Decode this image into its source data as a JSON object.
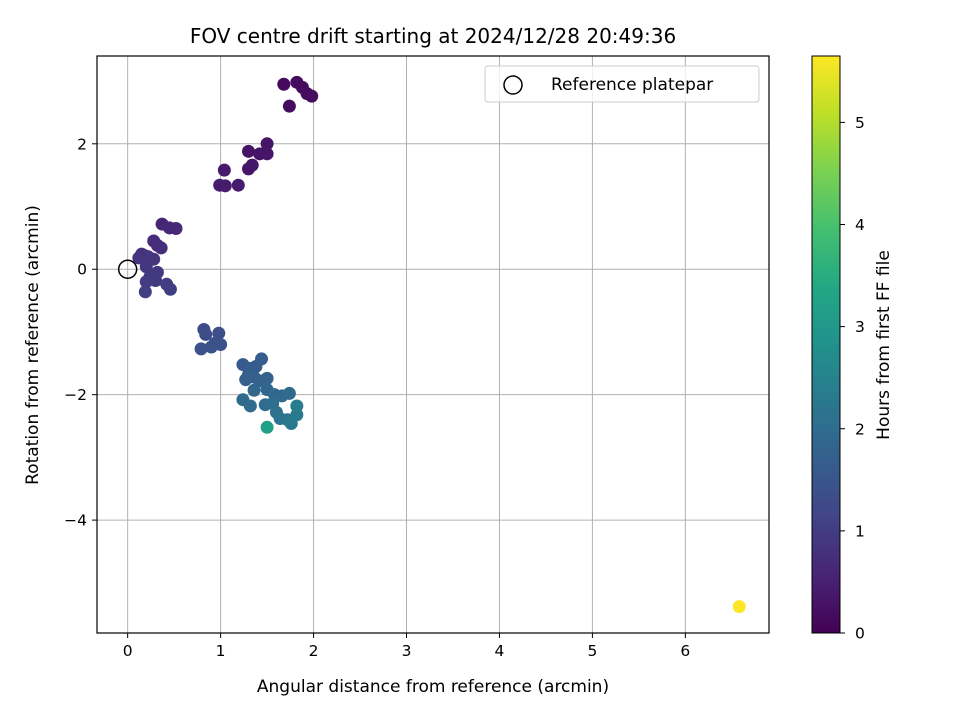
{
  "chart_data": {
    "type": "scatter",
    "title": "FOV centre drift starting at 2024/12/28 20:49:36",
    "xlabel": "Angular distance from reference (arcmin)",
    "ylabel": "Rotation from reference (arcmin)",
    "xlim": [
      -0.33,
      6.9
    ],
    "ylim": [
      -5.8,
      3.4
    ],
    "xticks": [
      0,
      1,
      2,
      3,
      4,
      5,
      6
    ],
    "yticks": [
      2,
      0,
      -2,
      -4
    ],
    "grid": true,
    "legend": {
      "placement": "top-right",
      "entries": [
        "Reference platepar"
      ]
    },
    "reference_point": {
      "x": 0,
      "y": 0,
      "label": "Reference platepar"
    },
    "colorbar": {
      "label": "Hours from first FF file",
      "colormap": "viridis",
      "range": [
        0,
        5.65
      ],
      "ticks": [
        0,
        1,
        2,
        3,
        4,
        5
      ]
    },
    "points": [
      {
        "x": 1.68,
        "y": 2.95,
        "c": 0.15
      },
      {
        "x": 1.82,
        "y": 2.98,
        "c": 0.16
      },
      {
        "x": 1.88,
        "y": 2.9,
        "c": 0.17
      },
      {
        "x": 1.93,
        "y": 2.8,
        "c": 0.18
      },
      {
        "x": 1.98,
        "y": 2.76,
        "c": 0.19
      },
      {
        "x": 1.74,
        "y": 2.6,
        "c": 0.2
      },
      {
        "x": 1.3,
        "y": 1.88,
        "c": 0.3
      },
      {
        "x": 1.42,
        "y": 1.84,
        "c": 0.31
      },
      {
        "x": 1.5,
        "y": 2.0,
        "c": 0.32
      },
      {
        "x": 1.5,
        "y": 1.84,
        "c": 0.33
      },
      {
        "x": 1.34,
        "y": 1.66,
        "c": 0.34
      },
      {
        "x": 1.3,
        "y": 1.6,
        "c": 0.35
      },
      {
        "x": 1.04,
        "y": 1.58,
        "c": 0.4
      },
      {
        "x": 0.99,
        "y": 1.34,
        "c": 0.42
      },
      {
        "x": 1.05,
        "y": 1.33,
        "c": 0.43
      },
      {
        "x": 1.19,
        "y": 1.34,
        "c": 0.44
      },
      {
        "x": 0.37,
        "y": 0.72,
        "c": 0.6
      },
      {
        "x": 0.45,
        "y": 0.66,
        "c": 0.62
      },
      {
        "x": 0.52,
        "y": 0.65,
        "c": 0.64
      },
      {
        "x": 0.28,
        "y": 0.45,
        "c": 0.7
      },
      {
        "x": 0.32,
        "y": 0.38,
        "c": 0.72
      },
      {
        "x": 0.36,
        "y": 0.34,
        "c": 0.74
      },
      {
        "x": 0.15,
        "y": 0.24,
        "c": 0.8
      },
      {
        "x": 0.18,
        "y": 0.22,
        "c": 0.82
      },
      {
        "x": 0.22,
        "y": 0.2,
        "c": 0.84
      },
      {
        "x": 0.12,
        "y": 0.18,
        "c": 0.86
      },
      {
        "x": 0.28,
        "y": 0.16,
        "c": 0.88
      },
      {
        "x": 0.2,
        "y": 0.04,
        "c": 0.9
      },
      {
        "x": 0.32,
        "y": -0.05,
        "c": 0.92
      },
      {
        "x": 0.24,
        "y": -0.12,
        "c": 0.94
      },
      {
        "x": 0.3,
        "y": -0.18,
        "c": 0.96
      },
      {
        "x": 0.2,
        "y": -0.2,
        "c": 0.98
      },
      {
        "x": 0.42,
        "y": -0.24,
        "c": 1.0
      },
      {
        "x": 0.46,
        "y": -0.32,
        "c": 1.02
      },
      {
        "x": 0.19,
        "y": -0.36,
        "c": 1.04
      },
      {
        "x": 0.82,
        "y": -0.96,
        "c": 1.3
      },
      {
        "x": 0.84,
        "y": -1.04,
        "c": 1.32
      },
      {
        "x": 0.98,
        "y": -1.02,
        "c": 1.34
      },
      {
        "x": 0.94,
        "y": -1.18,
        "c": 1.36
      },
      {
        "x": 1.0,
        "y": -1.2,
        "c": 1.38
      },
      {
        "x": 0.9,
        "y": -1.24,
        "c": 1.4
      },
      {
        "x": 0.79,
        "y": -1.27,
        "c": 1.42
      },
      {
        "x": 1.24,
        "y": -1.52,
        "c": 1.6
      },
      {
        "x": 1.32,
        "y": -1.58,
        "c": 1.62
      },
      {
        "x": 1.38,
        "y": -1.55,
        "c": 1.64
      },
      {
        "x": 1.44,
        "y": -1.43,
        "c": 1.66
      },
      {
        "x": 1.3,
        "y": -1.68,
        "c": 1.68
      },
      {
        "x": 1.36,
        "y": -1.72,
        "c": 1.7
      },
      {
        "x": 1.27,
        "y": -1.76,
        "c": 1.72
      },
      {
        "x": 1.42,
        "y": -1.78,
        "c": 1.74
      },
      {
        "x": 1.5,
        "y": -1.74,
        "c": 1.76
      },
      {
        "x": 1.36,
        "y": -1.93,
        "c": 1.85
      },
      {
        "x": 1.5,
        "y": -1.92,
        "c": 1.88
      },
      {
        "x": 1.58,
        "y": -2.0,
        "c": 1.9
      },
      {
        "x": 1.66,
        "y": -2.02,
        "c": 1.92
      },
      {
        "x": 1.74,
        "y": -1.98,
        "c": 1.94
      },
      {
        "x": 1.24,
        "y": -2.08,
        "c": 1.96
      },
      {
        "x": 1.32,
        "y": -2.18,
        "c": 1.98
      },
      {
        "x": 1.48,
        "y": -2.16,
        "c": 2.0
      },
      {
        "x": 1.56,
        "y": -2.14,
        "c": 2.05
      },
      {
        "x": 1.6,
        "y": -2.28,
        "c": 2.1
      },
      {
        "x": 1.64,
        "y": -2.38,
        "c": 2.15
      },
      {
        "x": 1.72,
        "y": -2.4,
        "c": 2.2
      },
      {
        "x": 1.76,
        "y": -2.46,
        "c": 2.25
      },
      {
        "x": 1.82,
        "y": -2.32,
        "c": 2.3
      },
      {
        "x": 1.82,
        "y": -2.18,
        "c": 2.35
      },
      {
        "x": 1.5,
        "y": -2.52,
        "c": 3.2
      },
      {
        "x": 6.58,
        "y": -5.38,
        "c": 5.65
      }
    ]
  }
}
